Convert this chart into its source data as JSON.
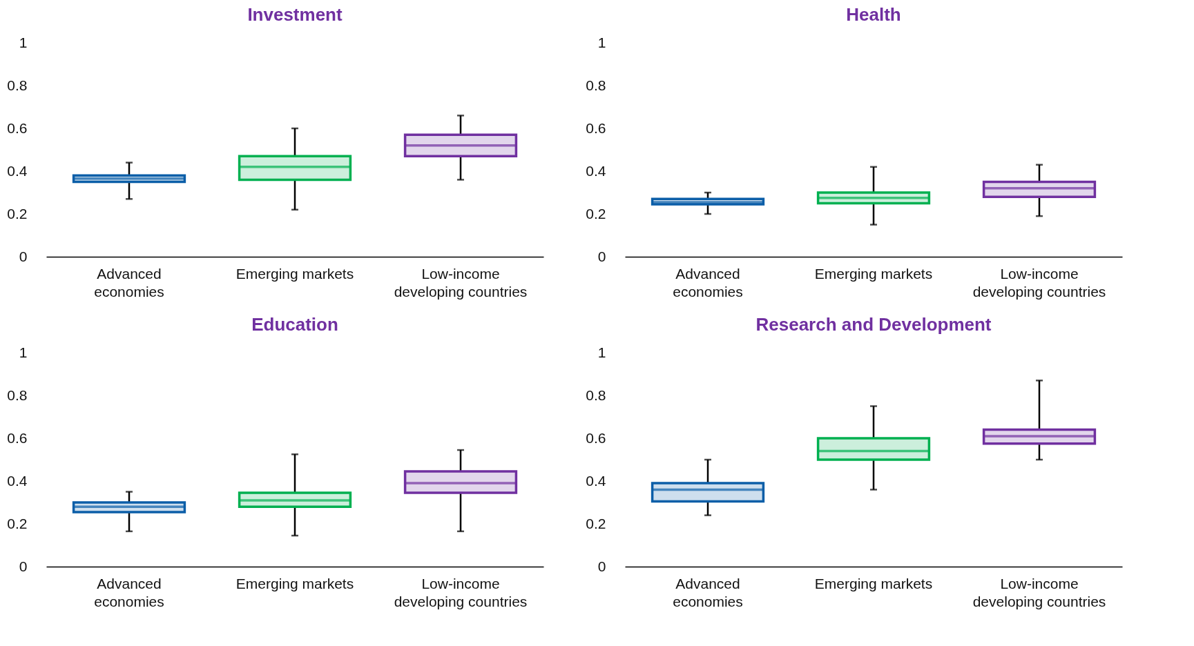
{
  "chart_data": [
    {
      "type": "box",
      "title": "Investment",
      "categories": [
        "Advanced economies",
        "Emerging markets",
        "Low-income developing countries"
      ],
      "colors": [
        "#0b5ea8",
        "#00b050",
        "#7030a0"
      ],
      "ylim": [
        0,
        1
      ],
      "yticks": [
        0,
        0.2,
        0.4,
        0.6,
        0.8,
        1
      ],
      "grid": false,
      "boxes": [
        {
          "low": 0.27,
          "q1": 0.35,
          "median": 0.365,
          "q3": 0.38,
          "high": 0.44
        },
        {
          "low": 0.22,
          "q1": 0.36,
          "median": 0.42,
          "q3": 0.47,
          "high": 0.6
        },
        {
          "low": 0.36,
          "q1": 0.47,
          "median": 0.52,
          "q3": 0.57,
          "high": 0.66
        }
      ]
    },
    {
      "type": "box",
      "title": "Health",
      "categories": [
        "Advanced economies",
        "Emerging markets",
        "Low-income developing countries"
      ],
      "colors": [
        "#0b5ea8",
        "#00b050",
        "#7030a0"
      ],
      "ylim": [
        0,
        1
      ],
      "yticks": [
        0,
        0.2,
        0.4,
        0.6,
        0.8,
        1
      ],
      "grid": false,
      "boxes": [
        {
          "low": 0.2,
          "q1": 0.245,
          "median": 0.255,
          "q3": 0.27,
          "high": 0.3
        },
        {
          "low": 0.15,
          "q1": 0.25,
          "median": 0.275,
          "q3": 0.3,
          "high": 0.42
        },
        {
          "low": 0.19,
          "q1": 0.28,
          "median": 0.32,
          "q3": 0.35,
          "high": 0.43
        }
      ]
    },
    {
      "type": "box",
      "title": "Education",
      "categories": [
        "Advanced economies",
        "Emerging markets",
        "Low-income developing countries"
      ],
      "colors": [
        "#0b5ea8",
        "#00b050",
        "#7030a0"
      ],
      "ylim": [
        0,
        1
      ],
      "yticks": [
        0,
        0.2,
        0.4,
        0.6,
        0.8,
        1
      ],
      "grid": false,
      "boxes": [
        {
          "low": 0.165,
          "q1": 0.255,
          "median": 0.28,
          "q3": 0.3,
          "high": 0.35
        },
        {
          "low": 0.145,
          "q1": 0.28,
          "median": 0.31,
          "q3": 0.345,
          "high": 0.525
        },
        {
          "low": 0.165,
          "q1": 0.345,
          "median": 0.39,
          "q3": 0.445,
          "high": 0.545
        }
      ]
    },
    {
      "type": "box",
      "title": "Research and Development",
      "categories": [
        "Advanced economies",
        "Emerging markets",
        "Low-income developing countries"
      ],
      "colors": [
        "#0b5ea8",
        "#00b050",
        "#7030a0"
      ],
      "ylim": [
        0,
        1
      ],
      "yticks": [
        0,
        0.2,
        0.4,
        0.6,
        0.8,
        1
      ],
      "grid": false,
      "boxes": [
        {
          "low": 0.24,
          "q1": 0.305,
          "median": 0.36,
          "q3": 0.39,
          "high": 0.5
        },
        {
          "low": 0.36,
          "q1": 0.5,
          "median": 0.54,
          "q3": 0.6,
          "high": 0.75
        },
        {
          "low": 0.5,
          "q1": 0.575,
          "median": 0.61,
          "q3": 0.64,
          "high": 0.87
        }
      ]
    }
  ]
}
